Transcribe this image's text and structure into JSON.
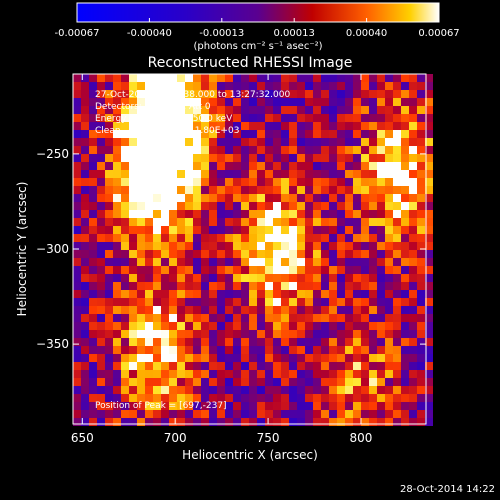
{
  "chart_data": {
    "type": "heatmap",
    "title": "Reconstructed RHESSI Image",
    "xlabel": "Heliocentric X (arcsec)",
    "ylabel": "Heliocentric Y (arcsec)",
    "xlim": [
      645,
      835
    ],
    "ylim": [
      -392,
      -208
    ],
    "xticks": [
      650,
      700,
      750,
      800
    ],
    "yticks": [
      -250,
      -300,
      -350
    ],
    "colorbar": {
      "ticks": [
        "-0.00067",
        "-0.00040",
        "-0.00013",
        "0.00013",
        "0.00040",
        "0.00067"
      ],
      "range": [
        -0.00067,
        0.00067
      ],
      "unit_label": "(photons cm⁻² s⁻¹ asec⁻²)"
    },
    "annotations": [
      "27-Oct-2014 13:23:38.000 to 13:27:32.000",
      "Detectors: 3F 6F 9F, Att 0",
      "Energy Range: 25.0 - 50.0 keV",
      "Clean     Total counts: 1.80E+03"
    ],
    "peak_label": "Position of Peak = [697,-237]",
    "sources": [
      {
        "x": 688,
        "y": -262,
        "value": 0.00067
      },
      {
        "x": 698,
        "y": -220,
        "value": 0.0006
      },
      {
        "x": 755,
        "y": -300,
        "value": 0.00055
      },
      {
        "x": 820,
        "y": -260,
        "value": 0.0005
      },
      {
        "x": 690,
        "y": -355,
        "value": 0.00045
      },
      {
        "x": 800,
        "y": -370,
        "value": 0.0003
      }
    ]
  },
  "footer": {
    "timestamp": "28-Oct-2014 14:22"
  }
}
